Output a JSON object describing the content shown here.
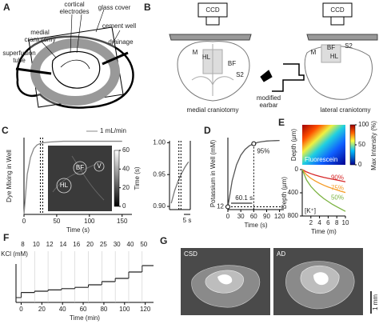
{
  "panels": {
    "a": {
      "letter": "A",
      "labels": [
        "cortical electrodes",
        "glass cover",
        "medial craniotomy",
        "cement well",
        "drainage",
        "superfusion tube"
      ]
    },
    "b": {
      "letter": "B",
      "left": {
        "camera": "CCD",
        "regions": [
          "M",
          "HL",
          "BF",
          "S2"
        ],
        "caption": "medial craniotomy"
      },
      "right": {
        "camera": "CCD",
        "regions": [
          "M",
          "BF",
          "HL",
          "S2"
        ],
        "earbar": "modified earbar",
        "caption": "lateral craniotomy"
      }
    },
    "g": {
      "letter": "G",
      "left": "CSD",
      "right": "AD",
      "scale": "1 mm"
    }
  },
  "chart_data": [
    {
      "panel": "C",
      "type": "line",
      "ylabel": "Dye Mixing in Well",
      "xlabel": "Time (s)",
      "annotations": [
        "1 mL/min"
      ],
      "x": [
        0,
        5,
        10,
        15,
        20,
        25,
        30,
        40,
        60,
        80,
        100,
        120,
        150
      ],
      "values": [
        0,
        0.55,
        0.78,
        0.9,
        0.95,
        0.97,
        0.98,
        0.99,
        1,
        1,
        1,
        1,
        1
      ],
      "color": "#888888",
      "xlim": [
        0,
        165
      ],
      "xticks": [
        0,
        50,
        100,
        150
      ],
      "ylim": [
        0,
        1.05
      ],
      "image": {
        "labels": [
          "BF",
          "V",
          "HL"
        ],
        "colorbar_label": "Time (s)",
        "colorbar_lim": [
          0,
          60
        ],
        "colorbar_ticks": [
          0,
          20,
          40,
          60
        ]
      }
    },
    {
      "type": "line",
      "annotations": [
        "5 s"
      ],
      "x": [
        14,
        18,
        22,
        26,
        30,
        34
      ],
      "values": [
        0.905,
        0.925,
        0.94,
        0.952,
        0.962,
        0.97
      ],
      "color": "#777777",
      "xlim": [
        12,
        36
      ],
      "ylim": [
        0.895,
        1.003
      ],
      "yticks": [
        {
          "value": 0.9,
          "label": "0.90"
        },
        0.95,
        {
          "value": 1,
          "label": "1.00"
        }
      ]
    },
    {
      "panel": "D",
      "type": "line",
      "ylabel": "Potassium in Well (mM)",
      "xlabel": "Time (s)",
      "annotations": [
        "95%",
        "60.1 s"
      ],
      "x": [
        0,
        10,
        20,
        30,
        40,
        50,
        60.1,
        70,
        80,
        90,
        100,
        110,
        120
      ],
      "values": [
        12,
        30.9,
        42.3,
        49.3,
        53.5,
        56.1,
        57.6,
        58.6,
        59.1,
        59.5,
        59.7,
        59.8,
        59.9
      ],
      "color": "#555555",
      "xlim": [
        0,
        130
      ],
      "xticks": [
        0,
        30,
        60,
        90,
        120
      ],
      "ylim": [
        10,
        62
      ],
      "yticks": [
        12
      ]
    },
    {
      "panel": "E",
      "type": "heatmap",
      "ylabel": "Depth (µm)",
      "label": "Fluorescein",
      "colorbar_label": "Max Intensity (%)",
      "colorbar_lim": [
        0,
        100
      ],
      "colorbar_ticks": [
        0,
        50,
        100
      ]
    },
    {
      "type": "line",
      "ylabel": "Depth (µm)",
      "xlabel": "Time (m)",
      "annotations": [
        "[K⁺]"
      ],
      "x": [
        0,
        1,
        2,
        3,
        4,
        5,
        6,
        7,
        8,
        9,
        10
      ],
      "series": [
        {
          "name": "90%",
          "color": "#d62728",
          "values": [
            0,
            40,
            70,
            95,
            115,
            135,
            150,
            165,
            180,
            195,
            210
          ]
        },
        {
          "name": "75%",
          "color": "#f59a23",
          "values": [
            0,
            90,
            150,
            195,
            235,
            270,
            300,
            325,
            350,
            375,
            395
          ]
        },
        {
          "name": "50%",
          "color": "#7cb342",
          "values": [
            0,
            180,
            290,
            370,
            440,
            500,
            550,
            600,
            640,
            680,
            720
          ]
        }
      ],
      "xlim": [
        0,
        10
      ],
      "xticks": [
        2,
        4,
        6,
        8,
        10
      ],
      "ylim": [
        800,
        0
      ],
      "yticks": [
        0,
        400,
        800
      ]
    },
    {
      "panel": "F",
      "type": "step",
      "ylabel": "KCl (mM)",
      "xlabel": "Time (min)",
      "x": [
        0,
        13,
        26,
        39,
        52,
        65,
        78,
        91,
        104,
        117
      ],
      "values": [
        8,
        10,
        12,
        14,
        16,
        20,
        25,
        30,
        40,
        50
      ],
      "color": "#222222",
      "xlim": [
        -5,
        128
      ],
      "xticks": [
        0,
        20,
        40,
        60,
        80,
        100,
        120
      ]
    }
  ]
}
